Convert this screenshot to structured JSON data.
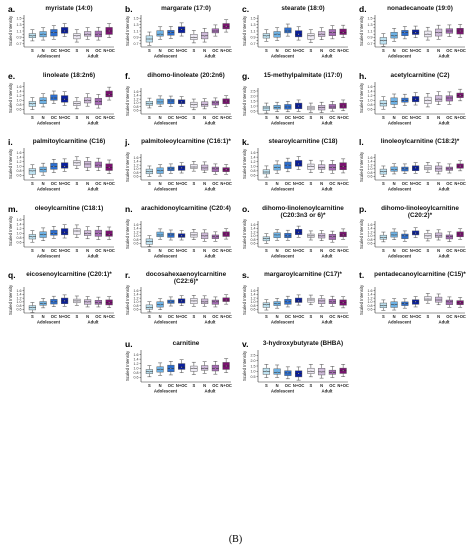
{
  "figure_label": "(B)",
  "colors": {
    "S": "#bfe3f2",
    "N": "#6fb3e6",
    "OC": "#2c6fd1",
    "N+OC": "#0a1f9e",
    "aS": "#eeeaf4",
    "aN": "#d1bddc",
    "aOC": "#a76cb6",
    "aN+OC": "#7a1170"
  },
  "chart_data": [
    {
      "id": "a",
      "label": "a.",
      "title": "myristate (14:0)",
      "type": "box",
      "ylabel": "Scaled Intensity",
      "ylim": [
        0.6,
        1.6
      ],
      "yticks": [
        "0.7",
        "0.8",
        "0.9",
        "1.0",
        "1.1",
        "1.2",
        "1.3",
        "1.4",
        "1.5"
      ],
      "categories": [
        "S",
        "N",
        "OC",
        "N+OC",
        "S",
        "N",
        "OC",
        "N+OC"
      ],
      "groups": [
        "Adolescent",
        "Adult"
      ],
      "medians": [
        0.95,
        1.0,
        1.05,
        1.1,
        0.95,
        1.0,
        1.0,
        1.1
      ]
    },
    {
      "id": "b",
      "label": "b.",
      "title": "margarate (17:0)",
      "type": "box",
      "ylabel": "Scaled Intensity",
      "ylim": [
        0.6,
        1.6
      ],
      "yticks": [
        "0.7",
        "0.8",
        "0.9",
        "1.0",
        "1.1",
        "1.2",
        "1.3",
        "1.4",
        "1.5"
      ],
      "categories": [
        "S",
        "N",
        "OC",
        "N+OC",
        "S",
        "N",
        "OC",
        "N+OC"
      ],
      "groups": [
        "Adolescent",
        "Adult"
      ],
      "medians": [
        0.85,
        1.0,
        1.05,
        1.15,
        0.9,
        0.95,
        1.1,
        1.25
      ]
    },
    {
      "id": "c",
      "label": "c.",
      "title": "stearate (18:0)",
      "type": "box",
      "ylabel": "Scaled Intensity",
      "ylim": [
        0.6,
        1.6
      ],
      "yticks": [
        "0.7",
        "0.8",
        "0.9",
        "1.0",
        "1.1",
        "1.2",
        "1.3",
        "1.4",
        "1.5"
      ],
      "categories": [
        "S",
        "N",
        "OC",
        "N+OC",
        "S",
        "N",
        "OC",
        "N+OC"
      ],
      "groups": [
        "Adolescent",
        "Adult"
      ],
      "medians": [
        0.95,
        1.0,
        1.1,
        1.0,
        0.95,
        1.0,
        1.05,
        1.05
      ]
    },
    {
      "id": "d",
      "label": "d.",
      "title": "nonadecanoate (19:0)",
      "type": "box",
      "ylabel": "Scaled Intensity",
      "ylim": [
        0.6,
        1.6
      ],
      "yticks": [
        "0.7",
        "0.8",
        "0.9",
        "1.0",
        "1.1",
        "1.2",
        "1.3",
        "1.4",
        "1.5"
      ],
      "categories": [
        "S",
        "N",
        "OC",
        "N+OC",
        "S",
        "N",
        "OC",
        "N+OC"
      ],
      "groups": [
        "Adolescent",
        "Adult"
      ],
      "medians": [
        0.8,
        0.95,
        1.05,
        1.05,
        1.0,
        1.05,
        1.1,
        1.1
      ]
    },
    {
      "id": "e",
      "label": "e.",
      "title": "linoleate (18:2n6)",
      "type": "box",
      "ylabel": "Scaled Intensity",
      "ylim": [
        0.4,
        1.8
      ],
      "yticks": [
        "0.6",
        "0.8",
        "1.0",
        "1.2",
        "1.4",
        "1.6"
      ],
      "categories": [
        "S",
        "N",
        "OC",
        "N+OC",
        "S",
        "N",
        "OC",
        "N+OC"
      ],
      "groups": [
        "Adolescent",
        "Adult"
      ],
      "medians": [
        0.85,
        1.0,
        1.1,
        1.05,
        0.85,
        1.0,
        0.95,
        1.25
      ]
    },
    {
      "id": "f",
      "label": "f.",
      "title": "dihomo-linoleate (20:2n6)",
      "type": "box",
      "ylabel": "Scaled Intensity",
      "ylim": [
        0.4,
        1.8
      ],
      "yticks": [
        "0.6",
        "0.8",
        "1.0",
        "1.2",
        "1.4",
        "1.6"
      ],
      "categories": [
        "S",
        "N",
        "OC",
        "N+OC",
        "S",
        "N",
        "OC",
        "N+OC"
      ],
      "groups": [
        "Adolescent",
        "Adult"
      ],
      "medians": [
        0.95,
        1.05,
        1.1,
        1.05,
        0.9,
        0.9,
        1.0,
        1.1
      ]
    },
    {
      "id": "g",
      "label": "g.",
      "title": "15-methylpalmitate (i17:0)",
      "type": "box",
      "ylabel": "Scaled Intensity",
      "ylim": [
        0.2,
        2.8
      ],
      "yticks": [
        "0.5",
        "1.0",
        "1.5",
        "2.0",
        "2.5"
      ],
      "categories": [
        "S",
        "N",
        "OC",
        "N+OC",
        "S",
        "N",
        "OC",
        "N+OC"
      ],
      "groups": [
        "Adolescent",
        "Adult"
      ],
      "medians": [
        0.8,
        0.85,
        0.9,
        1.0,
        0.8,
        0.85,
        0.9,
        1.0
      ]
    },
    {
      "id": "h",
      "label": "h.",
      "title": "acetylcarnitine (C2)",
      "type": "box",
      "ylabel": "Scaled Intensity",
      "ylim": [
        0.4,
        1.8
      ],
      "yticks": [
        "0.6",
        "0.8",
        "1.0",
        "1.2",
        "1.4",
        "1.6"
      ],
      "categories": [
        "S",
        "N",
        "OC",
        "N+OC",
        "S",
        "N",
        "OC",
        "N+OC"
      ],
      "groups": [
        "Adolescent",
        "Adult"
      ],
      "medians": [
        0.85,
        0.95,
        1.0,
        1.05,
        1.0,
        1.05,
        1.1,
        1.2
      ]
    },
    {
      "id": "i",
      "label": "i.",
      "title": "palmitoylcarnitine (C16)",
      "type": "box",
      "ylabel": "Scaled Intensity",
      "ylim": [
        0.4,
        1.8
      ],
      "yticks": [
        "0.6",
        "0.8",
        "1.0",
        "1.2",
        "1.4",
        "1.6"
      ],
      "categories": [
        "S",
        "N",
        "OC",
        "N+OC",
        "S",
        "N",
        "OC",
        "N+OC"
      ],
      "groups": [
        "Adolescent",
        "Adult"
      ],
      "medians": [
        0.8,
        0.85,
        1.0,
        1.0,
        1.15,
        1.1,
        1.05,
        0.95
      ]
    },
    {
      "id": "j",
      "label": "j.",
      "title": "palmitoleoylcarnitine (C16:1)*",
      "type": "box",
      "ylabel": "Scaled Intensity",
      "ylim": [
        0.4,
        1.8
      ],
      "yticks": [
        "0.6",
        "0.8",
        "1.0",
        "1.2",
        "1.4",
        "1.6"
      ],
      "categories": [
        "S",
        "N",
        "OC",
        "N+OC",
        "S",
        "N",
        "OC",
        "N+OC"
      ],
      "groups": [
        "Adolescent",
        "Adult"
      ],
      "medians": [
        0.85,
        0.9,
        1.0,
        1.05,
        1.1,
        1.05,
        1.0,
        0.95
      ]
    },
    {
      "id": "k",
      "label": "k.",
      "title": "stearoylcarnitine (C18)",
      "type": "box",
      "ylabel": "Scaled Intensity",
      "ylim": [
        0.4,
        1.8
      ],
      "yticks": [
        "0.6",
        "0.8",
        "1.0",
        "1.2",
        "1.4",
        "1.6"
      ],
      "categories": [
        "S",
        "N",
        "OC",
        "N+OC",
        "S",
        "N",
        "OC",
        "N+OC"
      ],
      "groups": [
        "Adolescent",
        "Adult"
      ],
      "medians": [
        0.75,
        0.95,
        1.05,
        1.1,
        1.0,
        0.95,
        0.95,
        1.0
      ]
    },
    {
      "id": "l",
      "label": "l.",
      "title": "linoleoylcarnitine (C18:2)*",
      "type": "box",
      "ylabel": "Scaled Intensity",
      "ylim": [
        0.4,
        1.8
      ],
      "yticks": [
        "0.6",
        "0.8",
        "1.0",
        "1.2",
        "1.4",
        "1.6"
      ],
      "categories": [
        "S",
        "N",
        "OC",
        "N+OC",
        "S",
        "N",
        "OC",
        "N+OC"
      ],
      "groups": [
        "Adolescent",
        "Adult"
      ],
      "medians": [
        0.85,
        0.95,
        1.0,
        1.05,
        1.05,
        1.0,
        1.0,
        1.15
      ]
    },
    {
      "id": "m",
      "label": "m.",
      "title": "oleoylcarnitine (C18:1)",
      "type": "box",
      "ylabel": "Scaled Intensity",
      "ylim": [
        0.4,
        1.8
      ],
      "yticks": [
        "0.6",
        "0.8",
        "1.0",
        "1.2",
        "1.4",
        "1.6"
      ],
      "categories": [
        "S",
        "N",
        "OC",
        "N+OC",
        "S",
        "N",
        "OC",
        "N+OC"
      ],
      "groups": [
        "Adolescent",
        "Adult"
      ],
      "medians": [
        0.85,
        0.95,
        1.0,
        1.05,
        1.1,
        1.0,
        1.0,
        0.95
      ]
    },
    {
      "id": "n",
      "label": "n.",
      "title": "arachidonoylcarnitine (C20:4)",
      "type": "box",
      "ylabel": "Scaled Intensity",
      "ylim": [
        0.4,
        1.8
      ],
      "yticks": [
        "0.6",
        "0.8",
        "1.0",
        "1.2",
        "1.4",
        "1.6"
      ],
      "categories": [
        "S",
        "N",
        "OC",
        "N+OC",
        "S",
        "N",
        "OC",
        "N+OC"
      ],
      "groups": [
        "Adolescent",
        "Adult"
      ],
      "medians": [
        0.7,
        1.05,
        1.05,
        1.0,
        1.05,
        1.0,
        0.95,
        1.1
      ]
    },
    {
      "id": "o",
      "label": "o.",
      "title": "dihomo-linolenoylcarnitine (C20:3n3 or 6)*",
      "type": "box",
      "ylabel": "Scaled Intensity",
      "ylim": [
        0.4,
        1.8
      ],
      "yticks": [
        "0.6",
        "0.8",
        "1.0",
        "1.2",
        "1.4",
        "1.6"
      ],
      "categories": [
        "S",
        "N",
        "OC",
        "N+OC",
        "S",
        "N",
        "OC",
        "N+OC"
      ],
      "groups": [
        "Adolescent",
        "Adult"
      ],
      "medians": [
        0.85,
        1.05,
        1.0,
        1.2,
        1.0,
        1.0,
        0.95,
        1.05
      ]
    },
    {
      "id": "p",
      "label": "p.",
      "title": "dihomo-linoleoylcarnitine (C20:2)*",
      "type": "box",
      "ylabel": "Scaled Intensity",
      "ylim": [
        0.4,
        1.8
      ],
      "yticks": [
        "0.6",
        "0.8",
        "1.0",
        "1.2",
        "1.4",
        "1.6"
      ],
      "categories": [
        "S",
        "N",
        "OC",
        "N+OC",
        "S",
        "N",
        "OC",
        "N+OC"
      ],
      "groups": [
        "Adolescent",
        "Adult"
      ],
      "medians": [
        0.9,
        1.05,
        1.0,
        1.15,
        1.0,
        1.0,
        0.95,
        1.1
      ]
    },
    {
      "id": "q",
      "label": "q.",
      "title": "eicosenoylcarnitine (C20:1)*",
      "type": "box",
      "ylabel": "Scaled Intensity",
      "ylim": [
        0.4,
        1.8
      ],
      "yticks": [
        "0.6",
        "0.8",
        "1.0",
        "1.2",
        "1.4",
        "1.6"
      ],
      "categories": [
        "S",
        "N",
        "OC",
        "N+OC",
        "S",
        "N",
        "OC",
        "N+OC"
      ],
      "groups": [
        "Adolescent",
        "Adult"
      ],
      "medians": [
        0.7,
        0.9,
        1.0,
        1.05,
        1.05,
        1.0,
        0.95,
        0.95
      ]
    },
    {
      "id": "r",
      "label": "r.",
      "title": "docosahexaenoylcarnitine (C22:6)*",
      "type": "box",
      "ylabel": "Scaled Intensity",
      "ylim": [
        0.4,
        1.8
      ],
      "yticks": [
        "0.6",
        "0.8",
        "1.0",
        "1.2",
        "1.4",
        "1.6"
      ],
      "categories": [
        "S",
        "N",
        "OC",
        "N+OC",
        "S",
        "N",
        "OC",
        "N+OC"
      ],
      "groups": [
        "Adolescent",
        "Adult"
      ],
      "medians": [
        0.7,
        0.85,
        1.0,
        1.05,
        1.05,
        1.0,
        1.0,
        1.1
      ]
    },
    {
      "id": "s",
      "label": "s.",
      "title": "margaroylcarnitine (C17)*",
      "type": "box",
      "ylabel": "Scaled Intensity",
      "ylim": [
        0.4,
        1.8
      ],
      "yticks": [
        "0.6",
        "0.8",
        "1.0",
        "1.2",
        "1.4",
        "1.6"
      ],
      "categories": [
        "S",
        "N",
        "OC",
        "N+OC",
        "S",
        "N",
        "OC",
        "N+OC"
      ],
      "groups": [
        "Adolescent",
        "Adult"
      ],
      "medians": [
        0.85,
        0.9,
        1.0,
        1.05,
        1.1,
        1.05,
        1.0,
        0.95
      ]
    },
    {
      "id": "t",
      "label": "t.",
      "title": "pentadecanoylcarnitine (C15)*",
      "type": "box",
      "ylabel": "Scaled Intensity",
      "ylim": [
        0.4,
        1.8
      ],
      "yticks": [
        "0.6",
        "0.8",
        "1.0",
        "1.2",
        "1.4",
        "1.6"
      ],
      "categories": [
        "S",
        "N",
        "OC",
        "N+OC",
        "S",
        "N",
        "OC",
        "N+OC"
      ],
      "groups": [
        "Adolescent",
        "Adult"
      ],
      "medians": [
        0.8,
        0.85,
        0.9,
        1.0,
        1.15,
        1.1,
        1.0,
        0.95
      ]
    },
    {
      "id": "u",
      "label": "u.",
      "title": "carnitine",
      "type": "box",
      "ylabel": "Scaled Intensity",
      "ylim": [
        0.4,
        1.8
      ],
      "yticks": [
        "0.6",
        "0.8",
        "1.0",
        "1.2",
        "1.4",
        "1.6"
      ],
      "categories": [
        "S",
        "N",
        "OC",
        "N+OC",
        "S",
        "N",
        "OC",
        "N+OC"
      ],
      "groups": [
        "Adolescent",
        "Adult"
      ],
      "medians": [
        0.85,
        0.95,
        1.0,
        1.05,
        1.0,
        1.0,
        1.0,
        1.1
      ]
    },
    {
      "id": "v",
      "label": "v.",
      "title": "3-hydroxybutyrate (BHBA)",
      "type": "box",
      "ylabel": "Scaled Intensity",
      "ylim": [
        0.0,
        3.0
      ],
      "yticks": [
        "0.5",
        "1.0",
        "1.5",
        "2.0",
        "2.5"
      ],
      "categories": [
        "S",
        "N",
        "OC",
        "N+OC",
        "S",
        "N",
        "OC",
        "N+OC"
      ],
      "groups": [
        "Adolescent",
        "Adult"
      ],
      "medians": [
        1.0,
        0.9,
        0.85,
        0.8,
        1.0,
        0.95,
        0.9,
        1.05
      ]
    }
  ]
}
